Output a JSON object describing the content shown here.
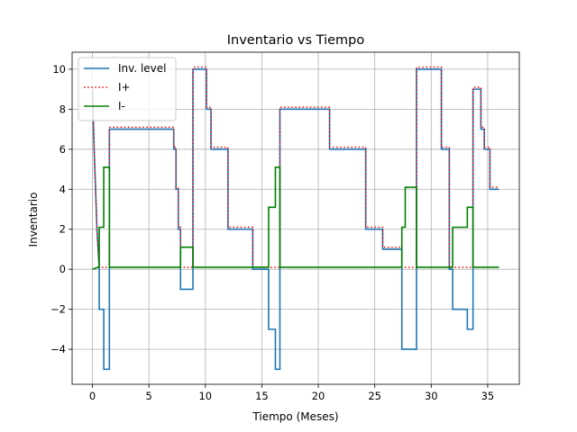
{
  "chart_data": {
    "type": "line",
    "title": "Inventario vs Tiempo",
    "xlabel": "Tiempo (Meses)",
    "ylabel": "Inventario",
    "xlim": [
      -1.8,
      37.8
    ],
    "ylim": [
      -5.75,
      10.85
    ],
    "xticks": [
      0,
      5,
      10,
      15,
      20,
      25,
      30,
      35
    ],
    "yticks": [
      -4,
      -2,
      0,
      2,
      4,
      6,
      8,
      10
    ],
    "grid": true,
    "legend_position": "top-left",
    "series": [
      {
        "name": "Inv. level",
        "color": "#1f77b4",
        "style": "solid",
        "x": [
          0,
          0.15,
          0.4,
          0.6,
          0.6,
          1.0,
          1.0,
          1.5,
          1.5,
          7.2,
          7.2,
          7.4,
          7.4,
          7.6,
          7.6,
          7.8,
          7.8,
          8.9,
          8.9,
          10.1,
          10.1,
          10.5,
          10.5,
          12.0,
          12.0,
          14.2,
          14.2,
          15.6,
          15.6,
          16.2,
          16.2,
          16.6,
          16.6,
          21.0,
          21.0,
          24.2,
          24.2,
          25.7,
          25.7,
          27.4,
          27.4,
          27.7,
          27.7,
          28.7,
          28.7,
          30.9,
          30.9,
          31.6,
          31.6,
          31.9,
          31.9,
          33.2,
          33.2,
          33.7,
          33.7,
          34.4,
          34.4,
          34.7,
          34.7,
          35.2,
          35.2,
          36.0
        ],
        "y": [
          9,
          6,
          2,
          0,
          -2,
          -2,
          -5,
          -5,
          7,
          7,
          6,
          6,
          4,
          4,
          2,
          2,
          -1,
          -1,
          10,
          10,
          8,
          8,
          6,
          6,
          2,
          2,
          0,
          0,
          -3,
          -3,
          -5,
          -5,
          8,
          8,
          6,
          6,
          2,
          2,
          1,
          1,
          -4,
          -4,
          -4,
          -4,
          10,
          10,
          6,
          6,
          0,
          0,
          -2,
          -2,
          -3,
          -3,
          9,
          9,
          7,
          7,
          6,
          6,
          4,
          4
        ]
      },
      {
        "name": "I+",
        "color": "#ff0000",
        "style": "dotted",
        "x": [
          0,
          0.15,
          0.4,
          0.6,
          0.6,
          1.5,
          1.5,
          7.2,
          7.2,
          7.4,
          7.4,
          7.6,
          7.6,
          7.8,
          7.8,
          8.9,
          8.9,
          10.1,
          10.1,
          10.5,
          10.5,
          12.0,
          12.0,
          14.2,
          14.2,
          16.6,
          16.6,
          21.0,
          21.0,
          24.2,
          24.2,
          25.7,
          25.7,
          27.4,
          27.4,
          28.7,
          28.7,
          30.9,
          30.9,
          31.6,
          31.6,
          33.7,
          33.7,
          34.4,
          34.4,
          34.7,
          34.7,
          35.2,
          35.2,
          36.0
        ],
        "y": [
          9,
          6,
          2,
          0.1,
          0.1,
          0.1,
          7.1,
          7.1,
          6.1,
          6.1,
          4.1,
          4.1,
          2.1,
          2.1,
          0.1,
          0.1,
          10.1,
          10.1,
          8.1,
          8.1,
          6.1,
          6.1,
          2.1,
          2.1,
          0.1,
          0.1,
          8.1,
          8.1,
          6.1,
          6.1,
          2.1,
          2.1,
          1.1,
          1.1,
          0.1,
          0.1,
          10.1,
          10.1,
          6.1,
          6.1,
          0.1,
          0.1,
          9.1,
          9.1,
          7.1,
          7.1,
          6.1,
          6.1,
          4.1,
          4.1
        ]
      },
      {
        "name": "I-",
        "color": "#008000",
        "style": "solid",
        "x": [
          0,
          0.5,
          0.6,
          0.6,
          1.0,
          1.0,
          1.5,
          1.5,
          7.8,
          7.8,
          8.9,
          8.9,
          15.6,
          15.6,
          16.2,
          16.2,
          16.6,
          16.6,
          27.4,
          27.4,
          27.7,
          27.7,
          28.7,
          28.7,
          31.9,
          31.9,
          33.2,
          33.2,
          33.7,
          33.7,
          36.0
        ],
        "y": [
          0,
          0.1,
          0.1,
          2.1,
          2.1,
          5.1,
          5.1,
          0.1,
          0.1,
          1.1,
          1.1,
          0.1,
          0.1,
          3.1,
          3.1,
          5.1,
          5.1,
          0.1,
          0.1,
          2.1,
          2.1,
          4.1,
          4.1,
          0.1,
          0.1,
          2.1,
          2.1,
          3.1,
          3.1,
          0.1,
          0.1
        ]
      }
    ]
  }
}
